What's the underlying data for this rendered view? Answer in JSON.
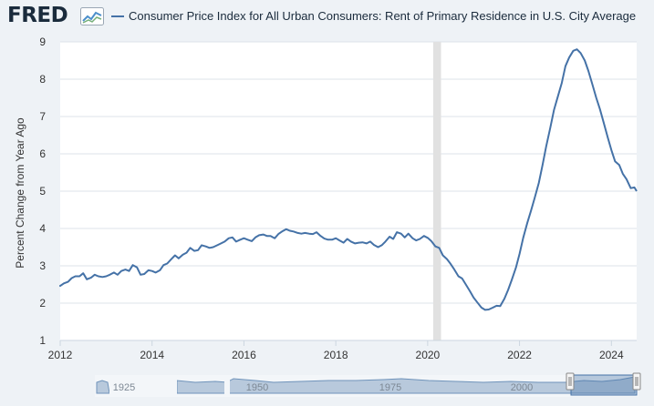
{
  "header": {
    "logo_text": "FRED",
    "logo_icon": "fred-chart-icon"
  },
  "colors": {
    "series": "#4572a7",
    "recession": "#e1e1e1",
    "grid": "#dde3ea",
    "axis_text": "#333333",
    "navigator": "#4572a7"
  },
  "chart_data": {
    "type": "line",
    "title": "Consumer Price Index for All Urban Consumers: Rent of Primary Residence in U.S. City Average",
    "xlabel": "",
    "ylabel": "Percent Change from Year Ago",
    "xlim": [
      2012.0,
      2024.55
    ],
    "ylim": [
      1,
      9
    ],
    "yticks": [
      "1",
      "2",
      "3",
      "4",
      "5",
      "6",
      "7",
      "8",
      "9"
    ],
    "xticks": [
      "2012",
      "2014",
      "2016",
      "2018",
      "2020",
      "2022",
      "2024"
    ],
    "grid": true,
    "legend_position": "top",
    "recession_shading": [
      [
        2020.12,
        2020.29
      ]
    ],
    "series": [
      {
        "name": "Consumer Price Index for All Urban Consumers: Rent of Primary Residence in U.S. City Average",
        "x": [
          2011.92,
          2012.0,
          2012.08,
          2012.17,
          2012.25,
          2012.33,
          2012.42,
          2012.5,
          2012.58,
          2012.67,
          2012.75,
          2012.83,
          2012.92,
          2013.0,
          2013.08,
          2013.17,
          2013.25,
          2013.33,
          2013.42,
          2013.5,
          2013.58,
          2013.67,
          2013.75,
          2013.83,
          2013.92,
          2014.0,
          2014.08,
          2014.17,
          2014.25,
          2014.33,
          2014.42,
          2014.5,
          2014.58,
          2014.67,
          2014.75,
          2014.83,
          2014.92,
          2015.0,
          2015.08,
          2015.17,
          2015.25,
          2015.33,
          2015.42,
          2015.5,
          2015.58,
          2015.67,
          2015.75,
          2015.83,
          2015.92,
          2016.0,
          2016.08,
          2016.17,
          2016.25,
          2016.33,
          2016.42,
          2016.5,
          2016.58,
          2016.67,
          2016.75,
          2016.83,
          2016.92,
          2017.0,
          2017.08,
          2017.17,
          2017.25,
          2017.33,
          2017.42,
          2017.5,
          2017.58,
          2017.67,
          2017.75,
          2017.83,
          2017.92,
          2018.0,
          2018.08,
          2018.17,
          2018.25,
          2018.33,
          2018.42,
          2018.5,
          2018.58,
          2018.67,
          2018.75,
          2018.83,
          2018.92,
          2019.0,
          2019.08,
          2019.17,
          2019.25,
          2019.33,
          2019.42,
          2019.5,
          2019.58,
          2019.67,
          2019.75,
          2019.83,
          2019.92,
          2020.0,
          2020.08,
          2020.17,
          2020.25,
          2020.33,
          2020.42,
          2020.5,
          2020.58,
          2020.67,
          2020.75,
          2020.83,
          2020.92,
          2021.0,
          2021.08,
          2021.17,
          2021.25,
          2021.33,
          2021.42,
          2021.5,
          2021.58,
          2021.67,
          2021.75,
          2021.83,
          2021.92,
          2022.0,
          2022.08,
          2022.17,
          2022.25,
          2022.33,
          2022.42,
          2022.5,
          2022.58,
          2022.67,
          2022.75,
          2022.83,
          2022.92,
          2023.0,
          2023.08,
          2023.17,
          2023.25,
          2023.33,
          2023.42,
          2023.5,
          2023.58,
          2023.67,
          2023.75,
          2023.83,
          2023.92,
          2024.0,
          2024.08,
          2024.17,
          2024.25,
          2024.33,
          2024.42,
          2024.5,
          2024.55
        ],
        "values": [
          2.48,
          2.46,
          2.53,
          2.57,
          2.67,
          2.72,
          2.72,
          2.8,
          2.64,
          2.68,
          2.76,
          2.72,
          2.7,
          2.72,
          2.76,
          2.82,
          2.76,
          2.86,
          2.9,
          2.86,
          3.02,
          2.96,
          2.76,
          2.78,
          2.88,
          2.86,
          2.82,
          2.88,
          3.02,
          3.06,
          3.18,
          3.28,
          3.2,
          3.3,
          3.35,
          3.48,
          3.4,
          3.42,
          3.55,
          3.52,
          3.48,
          3.5,
          3.55,
          3.6,
          3.65,
          3.74,
          3.76,
          3.65,
          3.7,
          3.74,
          3.7,
          3.66,
          3.76,
          3.82,
          3.84,
          3.8,
          3.8,
          3.74,
          3.85,
          3.92,
          3.98,
          3.94,
          3.92,
          3.88,
          3.86,
          3.88,
          3.86,
          3.85,
          3.9,
          3.8,
          3.73,
          3.7,
          3.7,
          3.74,
          3.68,
          3.62,
          3.72,
          3.65,
          3.6,
          3.62,
          3.63,
          3.6,
          3.65,
          3.56,
          3.5,
          3.55,
          3.65,
          3.78,
          3.72,
          3.9,
          3.86,
          3.76,
          3.86,
          3.74,
          3.68,
          3.72,
          3.8,
          3.75,
          3.66,
          3.52,
          3.48,
          3.28,
          3.18,
          3.05,
          2.9,
          2.72,
          2.66,
          2.5,
          2.32,
          2.15,
          2.02,
          1.88,
          1.82,
          1.83,
          1.88,
          1.93,
          1.92,
          2.12,
          2.35,
          2.62,
          2.95,
          3.32,
          3.75,
          4.15,
          4.48,
          4.82,
          5.22,
          5.7,
          6.2,
          6.7,
          7.18,
          7.52,
          7.9,
          8.35,
          8.58,
          8.76,
          8.8,
          8.7,
          8.5,
          8.22,
          7.88,
          7.5,
          7.2,
          6.85,
          6.44,
          6.1,
          5.8,
          5.7,
          5.46,
          5.32,
          5.08,
          5.1,
          5.0
        ]
      }
    ]
  },
  "navigator": {
    "labels": [
      "1925",
      "1950",
      "1975",
      "2000"
    ]
  }
}
